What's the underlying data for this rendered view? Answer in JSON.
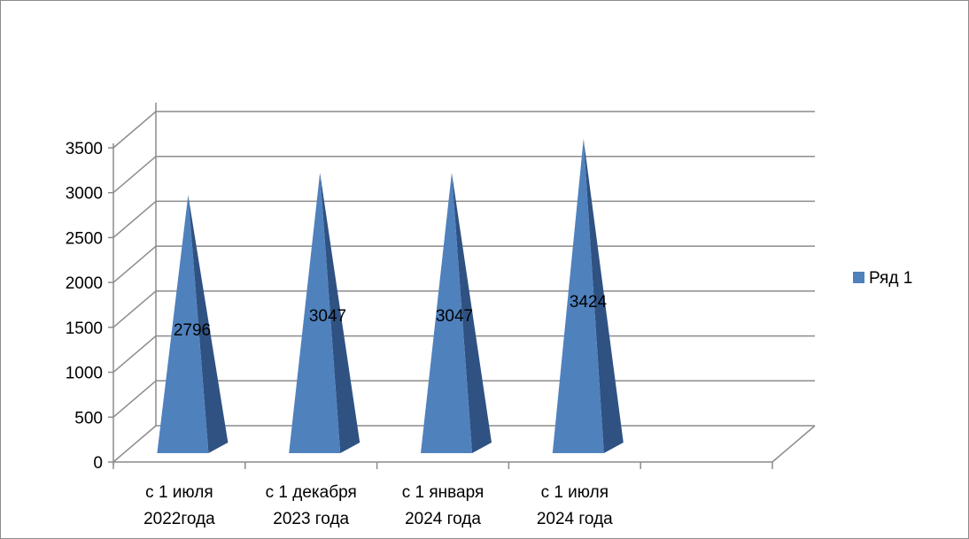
{
  "chart_data": {
    "type": "bar",
    "shape": "pyramid-3d",
    "categories": [
      [
        "с 1 июля",
        "2022года"
      ],
      [
        "с 1 декабря",
        "2023 года"
      ],
      [
        "с 1 января",
        "2024 года"
      ],
      [
        "с 1 июля",
        "2024 года"
      ]
    ],
    "series": [
      {
        "name": "Ряд 1",
        "values": [
          2796,
          3047,
          3047,
          3424
        ],
        "color": "#4f81bd"
      }
    ],
    "y_ticks": [
      "0",
      "500",
      "1000",
      "1500",
      "2000",
      "2500",
      "3000",
      "3500"
    ],
    "ylim": [
      0,
      3500
    ],
    "grid": true,
    "legend": "right",
    "data_labels": [
      "2796",
      "3047",
      "3047",
      "3424"
    ]
  }
}
